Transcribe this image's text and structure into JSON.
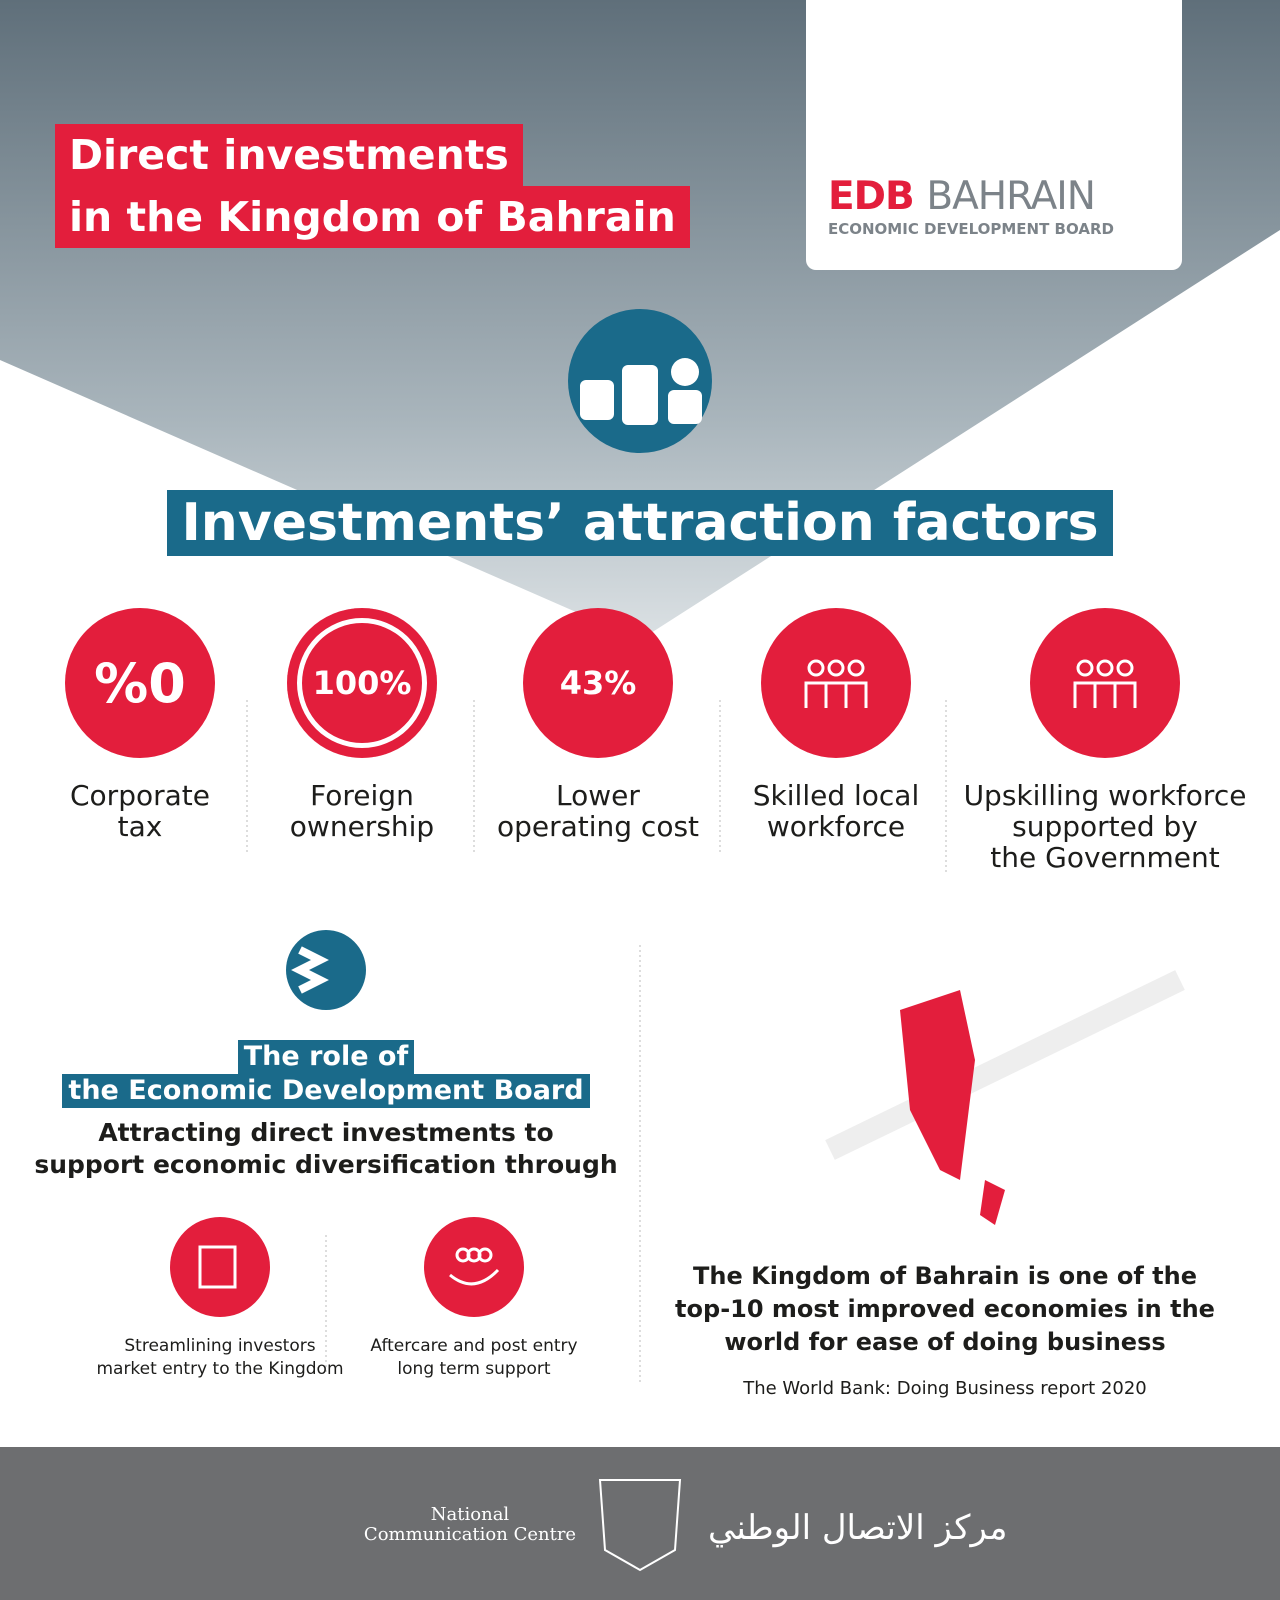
{
  "header": {
    "title": [
      "Direct investments",
      "in the Kingdom of Bahrain"
    ]
  },
  "logo": {
    "brand_red": "EDB",
    "brand_gray": "BAHRAIN",
    "subtitle": "ECONOMIC DEVELOPMENT BOARD"
  },
  "section_title": "Investments’ attraction factors",
  "factors": [
    {
      "badge": "%0",
      "label": [
        "Corporate",
        "tax"
      ]
    },
    {
      "badge": "100%",
      "label": [
        "Foreign",
        "ownership"
      ]
    },
    {
      "badge": "43%",
      "label": [
        "Lower",
        "operating cost"
      ]
    },
    {
      "badge": null,
      "label": [
        "Skilled local",
        "workforce"
      ]
    },
    {
      "badge": null,
      "label": [
        "Upskilling workforce",
        "supported by",
        "the Government"
      ]
    }
  ],
  "role": {
    "title": [
      "The role of",
      "the Economic Development Board"
    ],
    "subtitle": [
      "Attracting direct investments to",
      "support economic diversification through"
    ],
    "items": [
      {
        "label": [
          "Streamlining investors",
          "market entry to the Kingdom"
        ]
      },
      {
        "label": [
          "Aftercare and post entry",
          "long term support"
        ]
      }
    ]
  },
  "ranking": {
    "text": [
      "The Kingdom of Bahrain is one of the",
      "top-10 most improved economies in the",
      "world for ease of doing business"
    ],
    "source": "The World Bank: Doing Business report 2020"
  },
  "footer": {
    "org_en": [
      "National",
      "Communication Centre"
    ],
    "org_ar": "مركز الاتصال الوطني"
  }
}
